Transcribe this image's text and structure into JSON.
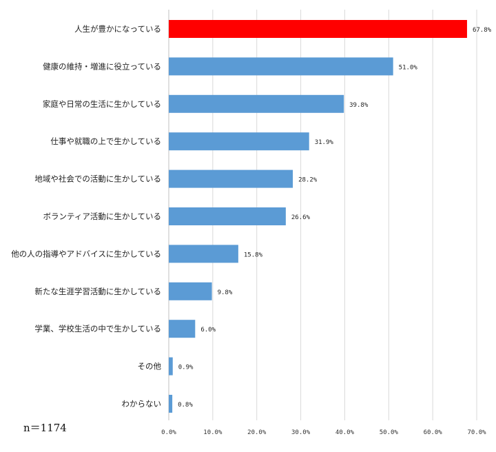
{
  "chart_data": {
    "type": "bar",
    "orientation": "horizontal",
    "categories": [
      "人生が豊かになっている",
      "健康の維持・増進に役立っている",
      "家庭や日常の生活に生かしている",
      "仕事や就職の上で生かしている",
      "地域や社会での活動に生かしている",
      "ボランティア活動に生かしている",
      "他の人の指導やアドバイスに生かしている",
      "新たな生涯学習活動に生かしている",
      "学業、学校生活の中で生かしている",
      "その他",
      "わからない"
    ],
    "values": [
      67.8,
      51.0,
      39.8,
      31.9,
      28.2,
      26.6,
      15.8,
      9.8,
      6.0,
      0.9,
      0.8
    ],
    "value_labels": [
      "67.8%",
      "51.0%",
      "39.8%",
      "31.9%",
      "28.2%",
      "26.6%",
      "15.8%",
      "9.8%",
      "6.0%",
      "0.9%",
      "0.8%"
    ],
    "xlim": [
      0,
      70
    ],
    "xticks": [
      0,
      10,
      20,
      30,
      40,
      50,
      60,
      70
    ],
    "xtick_labels": [
      "0.0%",
      "10.0%",
      "20.0%",
      "30.0%",
      "40.0%",
      "50.0%",
      "60.0%",
      "70.0%"
    ],
    "grid": true,
    "colors": {
      "highlight": "#ff0000",
      "bar": "#5b9bd5"
    },
    "highlight_index": 0
  },
  "note": "n＝1174"
}
